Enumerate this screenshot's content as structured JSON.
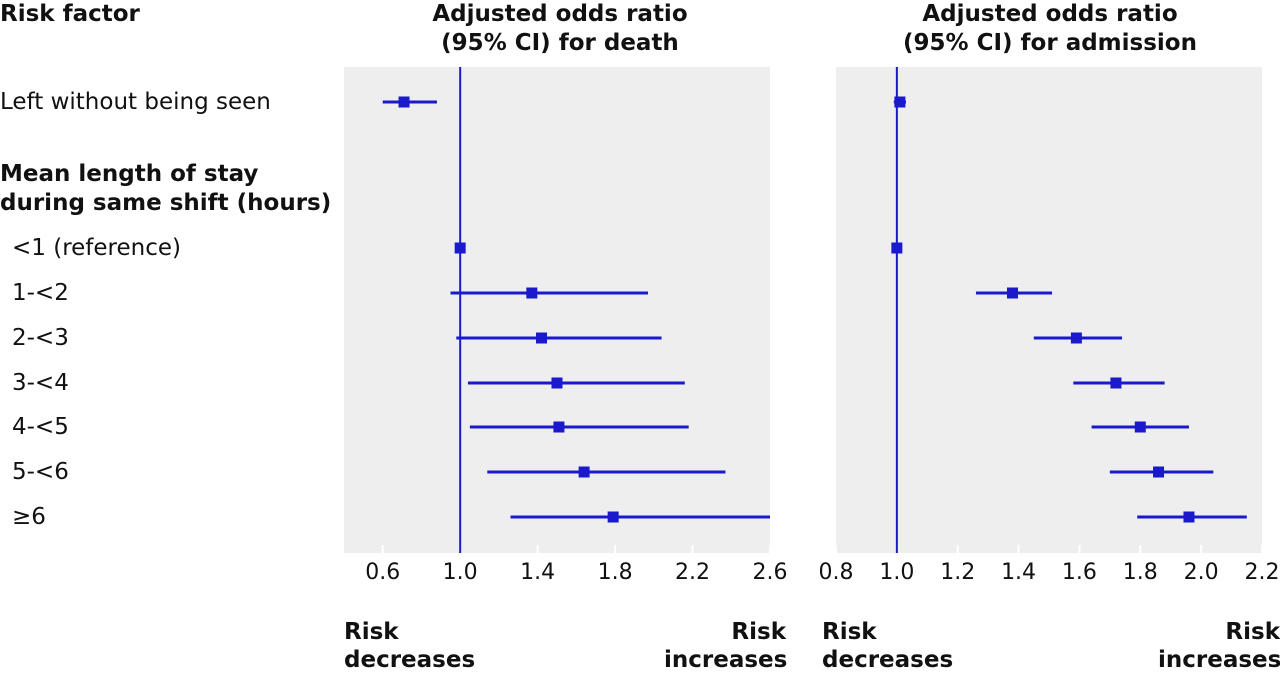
{
  "header": {
    "risk_factor_label": "Risk factor"
  },
  "rows": [
    {
      "label": "Left without being seen",
      "bold": false
    },
    {
      "label": "Mean length of stay\nduring same shift (hours)",
      "bold": true
    },
    {
      "label": "<1 (reference)",
      "bold": false
    },
    {
      "label": "1-<2",
      "bold": false
    },
    {
      "label": "2-<3",
      "bold": false
    },
    {
      "label": "3-<4",
      "bold": false
    },
    {
      "label": "4-<5",
      "bold": false
    },
    {
      "label": "5-<6",
      "bold": false
    },
    {
      "label": "≥6",
      "bold": false
    }
  ],
  "colors": {
    "marker": "#1a1acc",
    "panel_bg": "#eeeeee",
    "grid": "#ffffff"
  },
  "chart_data": [
    {
      "type": "forest",
      "title": "Adjusted odds ratio\n(95% CI) for death",
      "xlim": [
        0.4,
        2.6
      ],
      "ticks": [
        0.6,
        1.0,
        1.4,
        1.8,
        2.2,
        2.6
      ],
      "tick_labels": [
        "0.6",
        "1.0",
        "1.4",
        "1.8",
        "2.2",
        "2.6"
      ],
      "reference_line": 1.0,
      "risk_decreases_label": "Risk\ndecreases",
      "risk_increases_label": "Risk\nincreases",
      "points": [
        {
          "row": 0,
          "or": 0.71,
          "lo": 0.6,
          "hi": 0.88
        },
        {
          "row": 2,
          "or": 1.0,
          "lo": null,
          "hi": null
        },
        {
          "row": 3,
          "or": 1.37,
          "lo": 0.95,
          "hi": 1.97
        },
        {
          "row": 4,
          "or": 1.42,
          "lo": 0.98,
          "hi": 2.04
        },
        {
          "row": 5,
          "or": 1.5,
          "lo": 1.04,
          "hi": 2.16
        },
        {
          "row": 6,
          "or": 1.51,
          "lo": 1.05,
          "hi": 2.18
        },
        {
          "row": 7,
          "or": 1.64,
          "lo": 1.14,
          "hi": 2.37
        },
        {
          "row": 8,
          "or": 1.79,
          "lo": 1.26,
          "hi": 2.6
        }
      ]
    },
    {
      "type": "forest",
      "title": "Adjusted odds ratio\n(95% CI) for admission",
      "xlim": [
        0.8,
        2.2
      ],
      "ticks": [
        0.8,
        1.0,
        1.2,
        1.4,
        1.6,
        1.8,
        2.0,
        2.2
      ],
      "tick_labels": [
        "0.8",
        "1.0",
        "1.2",
        "1.4",
        "1.6",
        "1.8",
        "2.0",
        "2.2"
      ],
      "reference_line": 1.0,
      "risk_decreases_label": "Risk\ndecreases",
      "risk_increases_label": "Risk\nincreases",
      "points": [
        {
          "row": 0,
          "or": 1.01,
          "lo": 0.99,
          "hi": 1.03
        },
        {
          "row": 2,
          "or": 1.0,
          "lo": null,
          "hi": null
        },
        {
          "row": 3,
          "or": 1.38,
          "lo": 1.26,
          "hi": 1.51
        },
        {
          "row": 4,
          "or": 1.59,
          "lo": 1.45,
          "hi": 1.74
        },
        {
          "row": 5,
          "or": 1.72,
          "lo": 1.58,
          "hi": 1.88
        },
        {
          "row": 6,
          "or": 1.8,
          "lo": 1.64,
          "hi": 1.96
        },
        {
          "row": 7,
          "or": 1.86,
          "lo": 1.7,
          "hi": 2.04
        },
        {
          "row": 8,
          "or": 1.96,
          "lo": 1.79,
          "hi": 2.15
        }
      ]
    }
  ]
}
